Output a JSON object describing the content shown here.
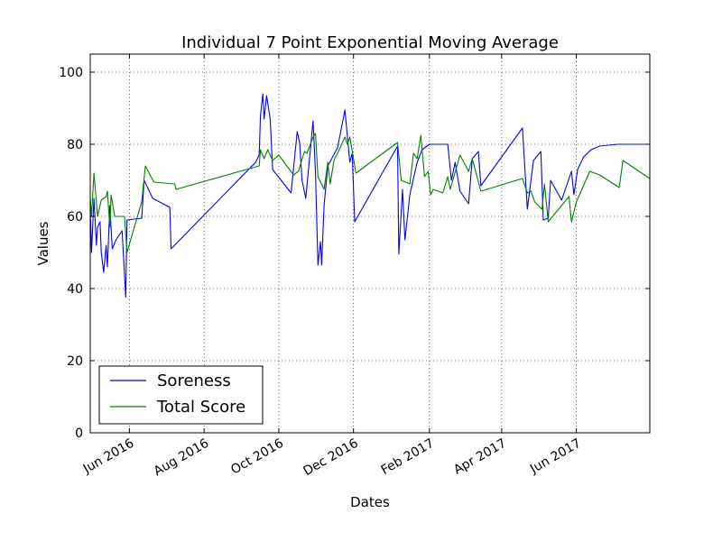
{
  "chart_data": {
    "type": "line",
    "title": "Individual 7 Point Exponential Moving Average",
    "xlabel": "Dates",
    "ylabel": "Values",
    "xlim": [
      "2016-04-30",
      "2017-07-31"
    ],
    "ylim": [
      0,
      105
    ],
    "x_ticks": [
      "2016-06-01",
      "2016-08-01",
      "2016-10-01",
      "2016-12-01",
      "2017-02-01",
      "2017-04-01",
      "2017-06-01"
    ],
    "x_tick_labels": [
      "Jun 2016",
      "Aug 2016",
      "Oct 2016",
      "Dec 2016",
      "Feb 2017",
      "Apr 2017",
      "Jun 2017"
    ],
    "y_ticks": [
      0,
      20,
      40,
      60,
      80,
      100
    ],
    "y_tick_labels": [
      "0",
      "20",
      "40",
      "60",
      "80",
      "100"
    ],
    "grid": true,
    "legend_position": "lower-left",
    "series": [
      {
        "name": "Soreness",
        "color": "#0000ff",
        "points": [
          [
            "2016-04-30",
            62
          ],
          [
            "2016-05-01",
            50
          ],
          [
            "2016-05-03",
            65
          ],
          [
            "2016-05-05",
            52
          ],
          [
            "2016-05-06",
            57
          ],
          [
            "2016-05-08",
            58.5
          ],
          [
            "2016-05-09",
            50
          ],
          [
            "2016-05-11",
            44.5
          ],
          [
            "2016-05-13",
            52
          ],
          [
            "2016-05-14",
            46
          ],
          [
            "2016-05-16",
            63
          ],
          [
            "2016-05-18",
            51
          ],
          [
            "2016-05-21",
            53.5
          ],
          [
            "2016-05-26",
            56
          ],
          [
            "2016-05-29",
            37.5
          ],
          [
            "2016-05-30",
            59
          ],
          [
            "2016-06-11",
            59.5
          ],
          [
            "2016-06-13",
            70
          ],
          [
            "2016-06-20",
            65
          ],
          [
            "2016-07-04",
            62.5
          ],
          [
            "2016-07-05",
            51
          ],
          [
            "2016-09-12",
            75
          ],
          [
            "2016-09-15",
            77
          ],
          [
            "2016-09-16",
            88
          ],
          [
            "2016-09-18",
            94
          ],
          [
            "2016-09-19",
            87
          ],
          [
            "2016-09-21",
            93.5
          ],
          [
            "2016-09-24",
            87
          ],
          [
            "2016-09-26",
            73
          ],
          [
            "2016-10-11",
            66.5
          ],
          [
            "2016-10-16",
            83.5
          ],
          [
            "2016-10-18",
            80.5
          ],
          [
            "2016-10-20",
            70
          ],
          [
            "2016-10-23",
            65
          ],
          [
            "2016-10-29",
            86.5
          ],
          [
            "2016-10-31",
            72
          ],
          [
            "2016-11-02",
            46.5
          ],
          [
            "2016-11-04",
            53
          ],
          [
            "2016-11-05",
            46.5
          ],
          [
            "2016-11-07",
            63
          ],
          [
            "2016-11-10",
            74
          ],
          [
            "2016-11-14",
            76.5
          ],
          [
            "2016-11-18",
            79
          ],
          [
            "2016-11-24",
            89.5
          ],
          [
            "2016-11-28",
            75
          ],
          [
            "2016-11-30",
            77.5
          ],
          [
            "2016-12-02",
            58.5
          ],
          [
            "2017-01-06",
            79.5
          ],
          [
            "2017-01-07",
            49.5
          ],
          [
            "2017-01-10",
            67.5
          ],
          [
            "2017-01-12",
            53.5
          ],
          [
            "2017-01-16",
            66
          ],
          [
            "2017-01-22",
            75
          ],
          [
            "2017-01-26",
            78.5
          ],
          [
            "2017-02-01",
            80
          ],
          [
            "2017-02-16",
            80
          ],
          [
            "2017-02-19",
            70
          ],
          [
            "2017-02-22",
            75
          ],
          [
            "2017-02-26",
            67
          ],
          [
            "2017-03-05",
            63.5
          ],
          [
            "2017-03-08",
            76
          ],
          [
            "2017-03-13",
            78
          ],
          [
            "2017-03-15",
            68.5
          ],
          [
            "2017-04-18",
            84.5
          ],
          [
            "2017-04-22",
            62
          ],
          [
            "2017-04-27",
            75.5
          ],
          [
            "2017-05-03",
            78
          ],
          [
            "2017-05-05",
            59
          ],
          [
            "2017-05-09",
            59.5
          ],
          [
            "2017-05-11",
            70
          ],
          [
            "2017-05-20",
            64.5
          ],
          [
            "2017-05-28",
            72.5
          ],
          [
            "2017-05-30",
            66
          ],
          [
            "2017-06-02",
            73
          ],
          [
            "2017-06-07",
            76.5
          ],
          [
            "2017-06-13",
            78.5
          ],
          [
            "2017-06-20",
            79.5
          ],
          [
            "2017-07-05",
            80
          ],
          [
            "2017-07-31",
            80
          ]
        ]
      },
      {
        "name": "Total Score",
        "color": "#008000",
        "points": [
          [
            "2016-04-30",
            65
          ],
          [
            "2016-05-01",
            60
          ],
          [
            "2016-05-03",
            72
          ],
          [
            "2016-05-06",
            60
          ],
          [
            "2016-05-09",
            64.5
          ],
          [
            "2016-05-11",
            65
          ],
          [
            "2016-05-13",
            65.5
          ],
          [
            "2016-05-14",
            67
          ],
          [
            "2016-05-16",
            57
          ],
          [
            "2016-05-17",
            66
          ],
          [
            "2016-05-20",
            60
          ],
          [
            "2016-05-28",
            60
          ],
          [
            "2016-05-30",
            50
          ],
          [
            "2016-06-11",
            64
          ],
          [
            "2016-06-14",
            74
          ],
          [
            "2016-06-21",
            69.5
          ],
          [
            "2016-07-08",
            69
          ],
          [
            "2016-07-09",
            67.5
          ],
          [
            "2016-09-15",
            74
          ],
          [
            "2016-09-16",
            78.5
          ],
          [
            "2016-09-19",
            76
          ],
          [
            "2016-09-22",
            78.5
          ],
          [
            "2016-09-26",
            75.5
          ],
          [
            "2016-10-01",
            77
          ],
          [
            "2016-10-13",
            71.5
          ],
          [
            "2016-10-17",
            72.5
          ],
          [
            "2016-10-22",
            78
          ],
          [
            "2016-10-24",
            77.5
          ],
          [
            "2016-10-29",
            82
          ],
          [
            "2016-10-31",
            83
          ],
          [
            "2016-11-02",
            71
          ],
          [
            "2016-11-07",
            67.5
          ],
          [
            "2016-11-10",
            75
          ],
          [
            "2016-11-12",
            69
          ],
          [
            "2016-11-15",
            75.5
          ],
          [
            "2016-11-18",
            77.5
          ],
          [
            "2016-11-24",
            82
          ],
          [
            "2016-11-26",
            80
          ],
          [
            "2016-11-28",
            82
          ],
          [
            "2016-12-03",
            72
          ],
          [
            "2017-01-06",
            80.5
          ],
          [
            "2017-01-09",
            70
          ],
          [
            "2017-01-16",
            69
          ],
          [
            "2017-01-19",
            77.5
          ],
          [
            "2017-01-22",
            76
          ],
          [
            "2017-01-25",
            82.5
          ],
          [
            "2017-01-28",
            71
          ],
          [
            "2017-01-31",
            72.5
          ],
          [
            "2017-02-02",
            66
          ],
          [
            "2017-02-04",
            67.5
          ],
          [
            "2017-02-12",
            66.5
          ],
          [
            "2017-02-16",
            71
          ],
          [
            "2017-02-18",
            67.5
          ],
          [
            "2017-02-26",
            77
          ],
          [
            "2017-03-05",
            72.5
          ],
          [
            "2017-03-08",
            76
          ],
          [
            "2017-03-15",
            67
          ],
          [
            "2017-04-18",
            70.5
          ],
          [
            "2017-04-22",
            66.5
          ],
          [
            "2017-04-25",
            67
          ],
          [
            "2017-04-28",
            64
          ],
          [
            "2017-05-04",
            62
          ],
          [
            "2017-05-06",
            69
          ],
          [
            "2017-05-09",
            58.5
          ],
          [
            "2017-05-26",
            65.5
          ],
          [
            "2017-05-28",
            58.5
          ],
          [
            "2017-06-01",
            64
          ],
          [
            "2017-06-12",
            72.5
          ],
          [
            "2017-06-20",
            71.5
          ],
          [
            "2017-07-06",
            68
          ],
          [
            "2017-07-09",
            75.5
          ],
          [
            "2017-07-31",
            70.5
          ]
        ]
      }
    ]
  }
}
